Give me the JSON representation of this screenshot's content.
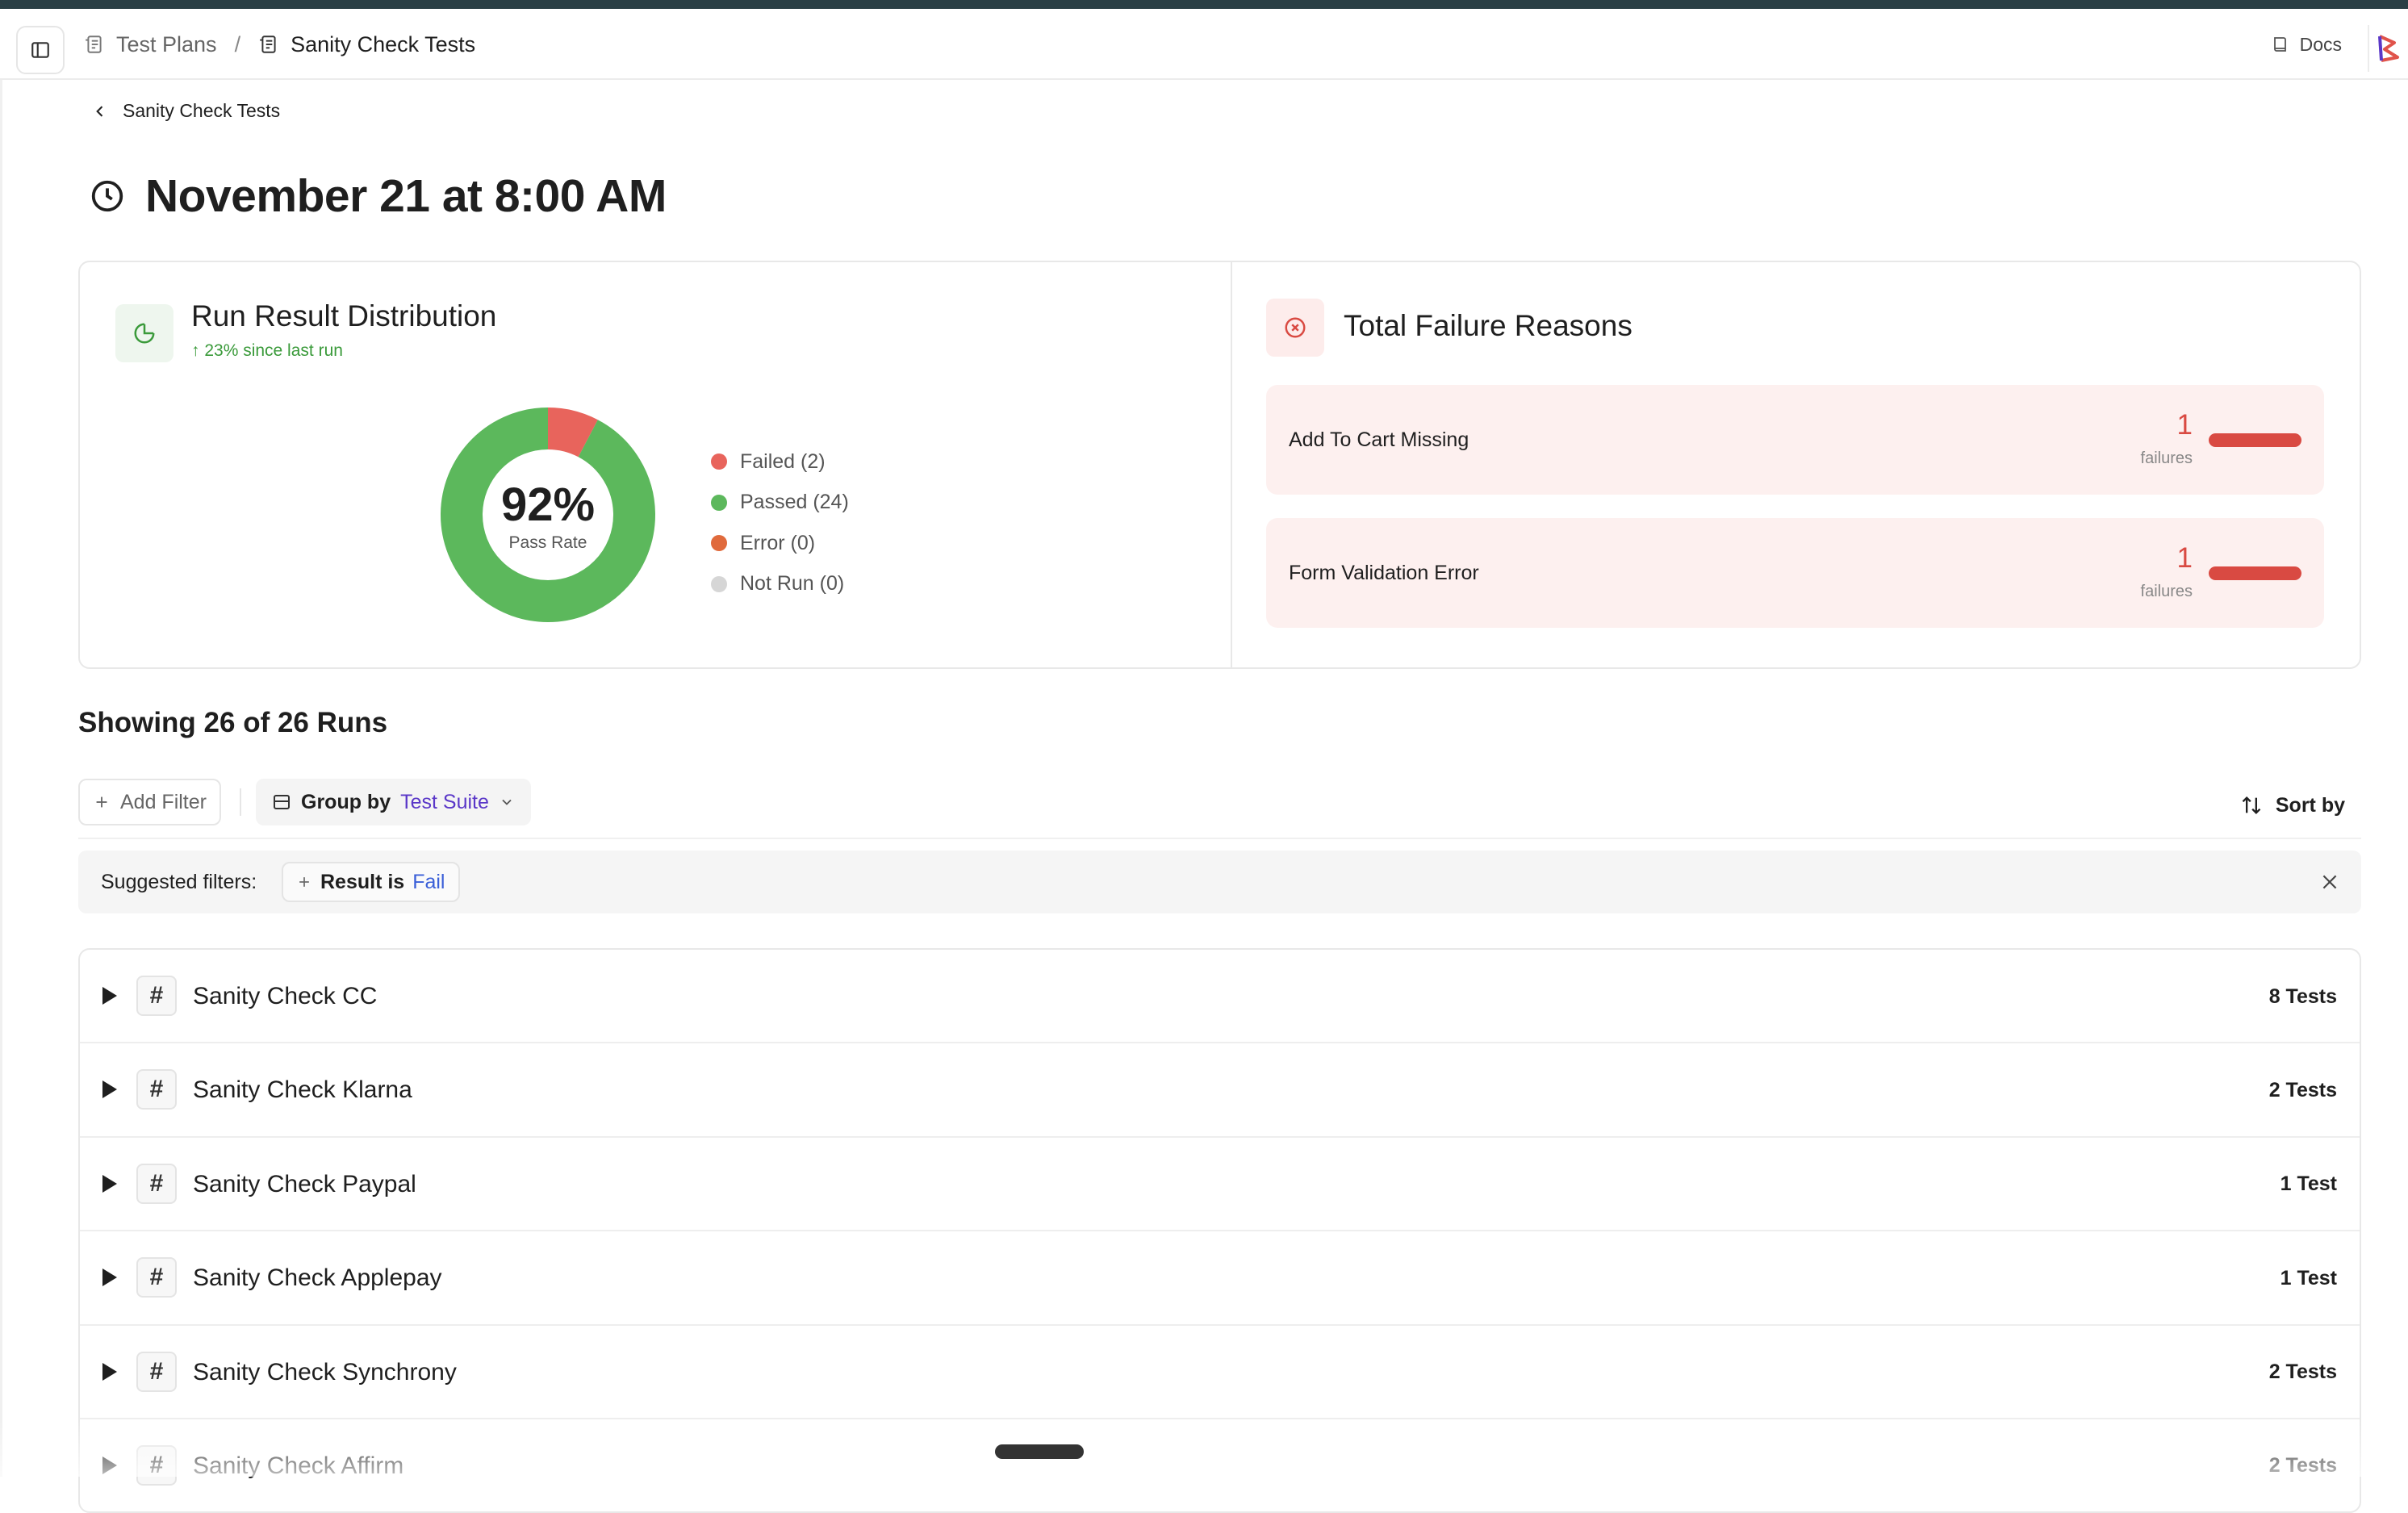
{
  "topbar": {
    "breadcrumbs": [
      "Test Plans",
      "Sanity Check Tests"
    ],
    "separator": "/",
    "docs_label": "Docs"
  },
  "back": {
    "label": "Sanity Check Tests"
  },
  "page": {
    "title": "November 21 at 8:00 AM"
  },
  "distribution": {
    "title": "Run Result Distribution",
    "trend": "↑ 23% since last run",
    "pass_rate": "92%",
    "pass_rate_label": "Pass Rate",
    "legend": [
      {
        "label": "Failed (2)",
        "color": "#e8645c",
        "value": 2
      },
      {
        "label": "Passed (24)",
        "color": "#5cb85c",
        "value": 24
      },
      {
        "label": "Error (0)",
        "color": "#e06a3c",
        "value": 0
      },
      {
        "label": "Not Run (0)",
        "color": "#d6d6d6",
        "value": 0
      }
    ]
  },
  "failures": {
    "title": "Total Failure Reasons",
    "items": [
      {
        "name": "Add To Cart Missing",
        "count": "1",
        "unit": "failures"
      },
      {
        "name": "Form Validation Error",
        "count": "1",
        "unit": "failures"
      }
    ]
  },
  "runs": {
    "showing": "Showing 26 of 26 Runs"
  },
  "toolbar": {
    "add_filter": "Add Filter",
    "group_by_label": "Group by",
    "group_by_value": "Test Suite",
    "sort_label": "Sort by"
  },
  "suggested": {
    "label": "Suggested filters:",
    "chip_label": "Result is",
    "chip_value": "Fail"
  },
  "suites": [
    {
      "name": "Sanity Check CC",
      "count": "8 Tests"
    },
    {
      "name": "Sanity Check Klarna",
      "count": "2 Tests"
    },
    {
      "name": "Sanity Check Paypal",
      "count": "1 Test"
    },
    {
      "name": "Sanity Check Applepay",
      "count": "1 Test"
    },
    {
      "name": "Sanity Check Synchrony",
      "count": "2 Tests"
    },
    {
      "name": "Sanity Check Affirm",
      "count": "2 Tests"
    }
  ]
}
